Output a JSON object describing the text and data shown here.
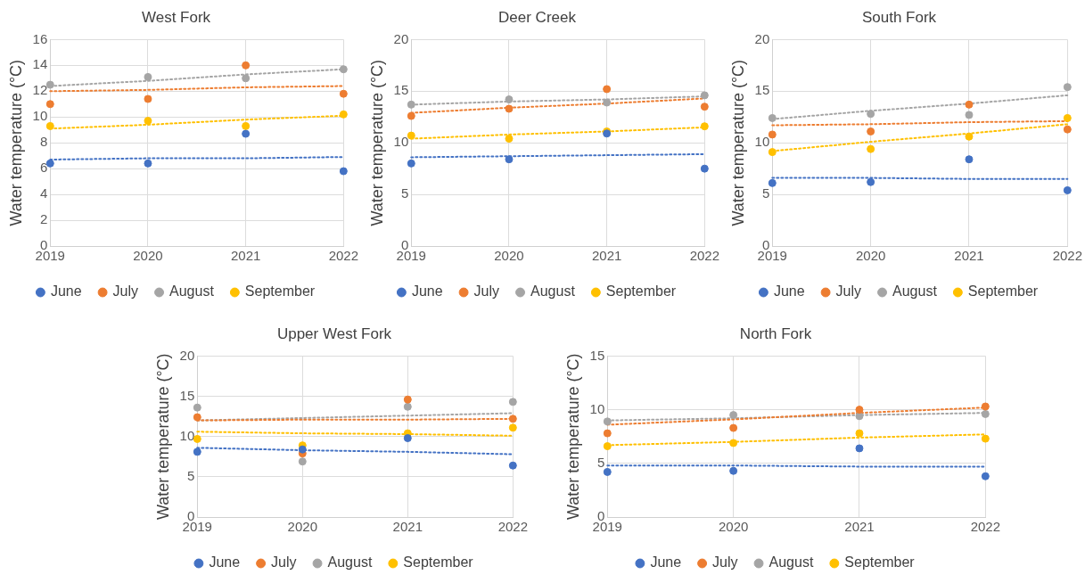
{
  "chart_data": [
    {
      "type": "scatter",
      "title": "West Fork",
      "ylabel": "Water temperature (°C)",
      "x": [
        2019,
        2020,
        2021,
        2022
      ],
      "xlim": [
        2019,
        2022
      ],
      "xticks": [
        2019,
        2020,
        2021,
        2022
      ],
      "ylim": [
        0,
        16
      ],
      "yticks": [
        0,
        2,
        4,
        6,
        8,
        10,
        12,
        14,
        16
      ],
      "grid": true,
      "legend": "bottom",
      "marker": "circle",
      "series": [
        {
          "name": "June",
          "color": "#4472c4",
          "values": [
            6.4,
            6.4,
            8.7,
            5.8
          ]
        },
        {
          "name": "July",
          "color": "#ed7d31",
          "values": [
            11.0,
            11.4,
            14.0,
            11.8
          ]
        },
        {
          "name": "August",
          "color": "#a5a5a5",
          "values": [
            12.5,
            13.1,
            13.0,
            13.7
          ]
        },
        {
          "name": "September",
          "color": "#ffc000",
          "values": [
            9.3,
            9.7,
            9.3,
            10.2
          ]
        },
        {
          "type": "line",
          "line_style": "dotted",
          "marker": "none",
          "color": "#4472c4",
          "values": [
            6.7,
            6.8,
            6.8,
            6.9
          ]
        },
        {
          "type": "line",
          "line_style": "dotted",
          "marker": "none",
          "color": "#ed7d31",
          "values": [
            12.0,
            12.1,
            12.3,
            12.4
          ]
        },
        {
          "type": "line",
          "line_style": "dotted",
          "marker": "none",
          "color": "#a5a5a5",
          "values": [
            12.4,
            12.8,
            13.3,
            13.7
          ]
        },
        {
          "type": "line",
          "line_style": "dotted",
          "marker": "none",
          "color": "#ffc000",
          "values": [
            9.1,
            9.4,
            9.8,
            10.1
          ]
        }
      ]
    },
    {
      "type": "scatter",
      "title": "Deer Creek",
      "ylabel": "Water temperature (°C)",
      "x": [
        2019,
        2020,
        2021,
        2022
      ],
      "xlim": [
        2019,
        2022
      ],
      "xticks": [
        2019,
        2020,
        2021,
        2022
      ],
      "ylim": [
        0,
        20
      ],
      "yticks": [
        0,
        5,
        10,
        15,
        20
      ],
      "grid": true,
      "legend": "bottom",
      "marker": "circle",
      "series": [
        {
          "name": "June",
          "color": "#4472c4",
          "values": [
            8.0,
            8.4,
            10.9,
            7.5
          ]
        },
        {
          "name": "July",
          "color": "#ed7d31",
          "values": [
            12.6,
            13.3,
            15.2,
            13.5
          ]
        },
        {
          "name": "August",
          "color": "#a5a5a5",
          "values": [
            13.7,
            14.2,
            13.9,
            14.6
          ]
        },
        {
          "name": "September",
          "color": "#ffc000",
          "values": [
            10.7,
            10.4,
            11.1,
            11.6
          ]
        },
        {
          "type": "line",
          "line_style": "dotted",
          "marker": "none",
          "color": "#4472c4",
          "values": [
            8.6,
            8.7,
            8.8,
            8.9
          ]
        },
        {
          "type": "line",
          "line_style": "dotted",
          "marker": "none",
          "color": "#ed7d31",
          "values": [
            12.9,
            13.4,
            13.8,
            14.3
          ]
        },
        {
          "type": "line",
          "line_style": "dotted",
          "marker": "none",
          "color": "#a5a5a5",
          "values": [
            13.7,
            14.0,
            14.2,
            14.5
          ]
        },
        {
          "type": "line",
          "line_style": "dotted",
          "marker": "none",
          "color": "#ffc000",
          "values": [
            10.4,
            10.8,
            11.1,
            11.5
          ]
        }
      ]
    },
    {
      "type": "scatter",
      "title": "South Fork",
      "ylabel": "Water temperature (°C)",
      "x": [
        2019,
        2020,
        2021,
        2022
      ],
      "xlim": [
        2019,
        2022
      ],
      "xticks": [
        2019,
        2020,
        2021,
        2022
      ],
      "ylim": [
        0,
        20
      ],
      "yticks": [
        0,
        5,
        10,
        15,
        20
      ],
      "grid": true,
      "legend": "bottom",
      "marker": "circle",
      "series": [
        {
          "name": "June",
          "color": "#4472c4",
          "values": [
            6.1,
            6.2,
            8.4,
            5.4
          ]
        },
        {
          "name": "July",
          "color": "#ed7d31",
          "values": [
            10.8,
            11.1,
            13.7,
            11.3
          ]
        },
        {
          "name": "August",
          "color": "#a5a5a5",
          "values": [
            12.4,
            12.8,
            12.7,
            15.4
          ]
        },
        {
          "name": "September",
          "color": "#ffc000",
          "values": [
            9.1,
            9.4,
            10.6,
            12.4
          ]
        },
        {
          "type": "line",
          "line_style": "dotted",
          "marker": "none",
          "color": "#4472c4",
          "values": [
            6.6,
            6.6,
            6.5,
            6.5
          ]
        },
        {
          "type": "line",
          "line_style": "dotted",
          "marker": "none",
          "color": "#ed7d31",
          "values": [
            11.7,
            11.8,
            12.0,
            12.1
          ]
        },
        {
          "type": "line",
          "line_style": "dotted",
          "marker": "none",
          "color": "#a5a5a5",
          "values": [
            12.3,
            13.1,
            13.8,
            14.6
          ]
        },
        {
          "type": "line",
          "line_style": "dotted",
          "marker": "none",
          "color": "#ffc000",
          "values": [
            9.2,
            10.1,
            10.9,
            11.8
          ]
        }
      ]
    },
    {
      "type": "scatter",
      "title": "Upper West Fork",
      "ylabel": "Water temperature (°C)",
      "x": [
        2019,
        2020,
        2021,
        2022
      ],
      "xlim": [
        2019,
        2022
      ],
      "xticks": [
        2019,
        2020,
        2021,
        2022
      ],
      "ylim": [
        0,
        20
      ],
      "yticks": [
        0,
        5,
        10,
        15,
        20
      ],
      "grid": true,
      "legend": "bottom",
      "marker": "circle",
      "series": [
        {
          "name": "June",
          "color": "#4472c4",
          "values": [
            8.1,
            8.4,
            9.8,
            6.4
          ]
        },
        {
          "name": "July",
          "color": "#ed7d31",
          "values": [
            12.4,
            7.9,
            14.6,
            12.2
          ]
        },
        {
          "name": "August",
          "color": "#a5a5a5",
          "values": [
            13.6,
            6.9,
            13.7,
            14.3
          ]
        },
        {
          "name": "September",
          "color": "#ffc000",
          "values": [
            9.7,
            8.9,
            10.4,
            11.1
          ]
        },
        {
          "type": "line",
          "line_style": "dotted",
          "marker": "none",
          "color": "#4472c4",
          "values": [
            8.6,
            8.3,
            8.1,
            7.8
          ]
        },
        {
          "type": "line",
          "line_style": "dotted",
          "marker": "none",
          "color": "#ed7d31",
          "values": [
            12.0,
            12.1,
            12.1,
            12.2
          ]
        },
        {
          "type": "line",
          "line_style": "dotted",
          "marker": "none",
          "color": "#a5a5a5",
          "values": [
            12.0,
            12.3,
            12.6,
            12.9
          ]
        },
        {
          "type": "line",
          "line_style": "dotted",
          "marker": "none",
          "color": "#ffc000",
          "values": [
            10.6,
            10.4,
            10.3,
            10.1
          ]
        }
      ]
    },
    {
      "type": "scatter",
      "title": "North Fork",
      "ylabel": "Water temperature (°C)",
      "x": [
        2019,
        2020,
        2021,
        2022
      ],
      "xlim": [
        2019,
        2022
      ],
      "xticks": [
        2019,
        2020,
        2021,
        2022
      ],
      "ylim": [
        0,
        15
      ],
      "yticks": [
        0,
        5,
        10,
        15
      ],
      "grid": true,
      "legend": "bottom",
      "marker": "circle",
      "series": [
        {
          "name": "June",
          "color": "#4472c4",
          "values": [
            4.2,
            4.3,
            6.4,
            3.8
          ]
        },
        {
          "name": "July",
          "color": "#ed7d31",
          "values": [
            7.8,
            8.3,
            10.0,
            10.3
          ]
        },
        {
          "name": "August",
          "color": "#a5a5a5",
          "values": [
            8.9,
            9.5,
            9.4,
            9.6
          ]
        },
        {
          "name": "September",
          "color": "#ffc000",
          "values": [
            6.6,
            6.9,
            7.8,
            7.3
          ]
        },
        {
          "type": "line",
          "line_style": "dotted",
          "marker": "none",
          "color": "#4472c4",
          "values": [
            4.8,
            4.8,
            4.7,
            4.7
          ]
        },
        {
          "type": "line",
          "line_style": "dotted",
          "marker": "none",
          "color": "#ed7d31",
          "values": [
            8.6,
            9.1,
            9.7,
            10.2
          ]
        },
        {
          "type": "line",
          "line_style": "dotted",
          "marker": "none",
          "color": "#a5a5a5",
          "values": [
            9.0,
            9.2,
            9.5,
            9.7
          ]
        },
        {
          "type": "line",
          "line_style": "dotted",
          "marker": "none",
          "color": "#ffc000",
          "values": [
            6.7,
            7.0,
            7.4,
            7.7
          ]
        }
      ]
    }
  ]
}
